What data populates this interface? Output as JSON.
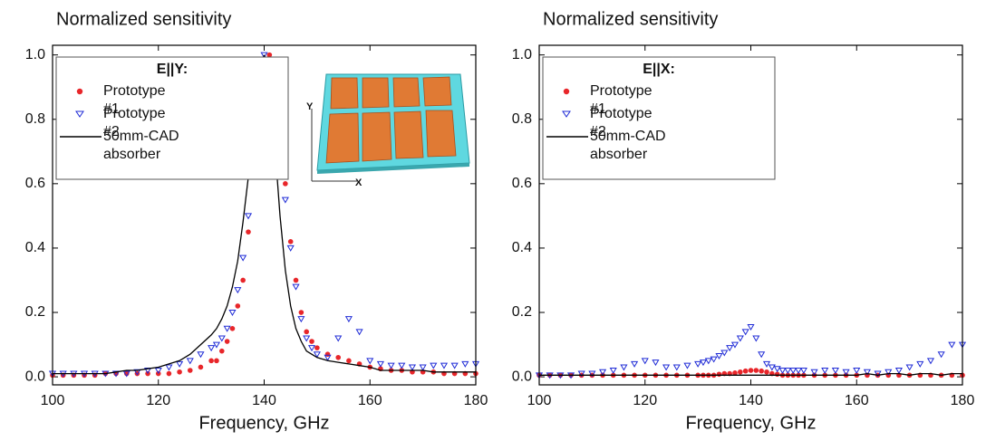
{
  "chart_data": [
    {
      "type": "line",
      "title": "Normalized sensitivity",
      "x_label": "Frequency, GHz",
      "legend_title": "E||Y:",
      "annotations": [
        "Y",
        "X"
      ],
      "xlim": [
        100,
        180
      ],
      "ylim": [
        -0.025,
        1.03
      ],
      "xticks": [
        100,
        120,
        140,
        160,
        180
      ],
      "yticks": [
        {
          "value": 0,
          "label": "0.0"
        },
        0.2,
        0.4,
        0.6,
        0.8,
        {
          "value": 1,
          "label": "1.0"
        }
      ],
      "x": [
        100,
        102,
        104,
        106,
        108,
        110,
        112,
        114,
        116,
        118,
        120,
        122,
        124,
        126,
        128,
        130,
        131,
        132,
        133,
        134,
        135,
        136,
        137,
        138,
        139,
        140,
        141,
        142,
        143,
        144,
        145,
        146,
        147,
        148,
        149,
        150,
        152,
        154,
        156,
        158,
        160,
        162,
        164,
        166,
        168,
        170,
        172,
        174,
        176,
        178,
        180
      ],
      "series": [
        {
          "name": "Prototype #1",
          "color": "#e8262a",
          "marker": "circle",
          "values": [
            0.005,
            0.005,
            0.005,
            0.005,
            0.005,
            0.01,
            0.01,
            0.01,
            0.01,
            0.01,
            0.01,
            0.01,
            0.015,
            0.02,
            0.03,
            0.05,
            0.05,
            0.08,
            0.11,
            0.15,
            0.22,
            0.3,
            0.45,
            0.65,
            0.83,
            0.95,
            1.0,
            0.93,
            0.8,
            0.6,
            0.42,
            0.3,
            0.2,
            0.14,
            0.11,
            0.09,
            0.07,
            0.06,
            0.05,
            0.04,
            0.03,
            0.025,
            0.02,
            0.02,
            0.015,
            0.015,
            0.015,
            0.01,
            0.01,
            0.01,
            0.01
          ]
        },
        {
          "name": "Prototype #2",
          "color": "#1f2bd6",
          "marker": "triangle-down",
          "values": [
            0.01,
            0.01,
            0.01,
            0.01,
            0.01,
            0.01,
            0.01,
            0.01,
            0.015,
            0.02,
            0.02,
            0.03,
            0.04,
            0.05,
            0.07,
            0.09,
            0.1,
            0.12,
            0.15,
            0.2,
            0.27,
            0.37,
            0.5,
            0.7,
            0.9,
            1.0,
            0.97,
            0.85,
            0.7,
            0.55,
            0.4,
            0.28,
            0.18,
            0.12,
            0.09,
            0.07,
            0.06,
            0.12,
            0.18,
            0.14,
            0.05,
            0.04,
            0.035,
            0.035,
            0.03,
            0.03,
            0.035,
            0.035,
            0.035,
            0.04,
            0.04
          ]
        },
        {
          "name": "50mm-CAD absorber",
          "color": "#000000",
          "marker": "none",
          "values": [
            0.01,
            0.01,
            0.01,
            0.01,
            0.01,
            0.01,
            0.015,
            0.02,
            0.02,
            0.025,
            0.03,
            0.04,
            0.05,
            0.07,
            0.1,
            0.13,
            0.15,
            0.18,
            0.22,
            0.28,
            0.36,
            0.48,
            0.62,
            0.78,
            0.92,
            1.0,
            0.9,
            0.72,
            0.5,
            0.33,
            0.22,
            0.15,
            0.11,
            0.08,
            0.07,
            0.06,
            0.05,
            0.045,
            0.04,
            0.035,
            0.03,
            0.02,
            0.02,
            0.02,
            0.02,
            0.02,
            0.015,
            0.015,
            0.015,
            0.015,
            0.015
          ]
        }
      ]
    },
    {
      "type": "line",
      "title": "Normalized sensitivity",
      "x_label": "Frequency, GHz",
      "legend_title": "E||X:",
      "xlim": [
        100,
        180
      ],
      "ylim": [
        -0.025,
        1.03
      ],
      "xticks": [
        100,
        120,
        140,
        160,
        180
      ],
      "yticks": [
        {
          "value": 0,
          "label": "0.0"
        },
        0.2,
        0.4,
        0.6,
        0.8,
        {
          "value": 1,
          "label": "1.0"
        }
      ],
      "x": [
        100,
        102,
        104,
        106,
        108,
        110,
        112,
        114,
        116,
        118,
        120,
        122,
        124,
        126,
        128,
        130,
        131,
        132,
        133,
        134,
        135,
        136,
        137,
        138,
        139,
        140,
        141,
        142,
        143,
        144,
        145,
        146,
        147,
        148,
        149,
        150,
        152,
        154,
        156,
        158,
        160,
        162,
        164,
        166,
        168,
        170,
        172,
        174,
        176,
        178,
        180
      ],
      "series": [
        {
          "name": "Prototype #1",
          "color": "#e8262a",
          "marker": "circle",
          "values": [
            0.005,
            0.005,
            0.005,
            0.005,
            0.005,
            0.005,
            0.005,
            0.005,
            0.005,
            0.005,
            0.005,
            0.005,
            0.005,
            0.005,
            0.005,
            0.005,
            0.005,
            0.005,
            0.005,
            0.008,
            0.01,
            0.01,
            0.012,
            0.015,
            0.018,
            0.02,
            0.02,
            0.018,
            0.015,
            0.01,
            0.008,
            0.005,
            0.005,
            0.005,
            0.005,
            0.005,
            0.005,
            0.005,
            0.005,
            0.005,
            0.005,
            0.005,
            0.005,
            0.005,
            0.005,
            0.005,
            0.005,
            0.005,
            0.005,
            0.005,
            0.005
          ]
        },
        {
          "name": "Prototype #2",
          "color": "#1f2bd6",
          "marker": "triangle-down",
          "values": [
            0.005,
            0.005,
            0.005,
            0.005,
            0.01,
            0.01,
            0.015,
            0.02,
            0.03,
            0.04,
            0.05,
            0.045,
            0.03,
            0.03,
            0.035,
            0.04,
            0.045,
            0.05,
            0.055,
            0.065,
            0.075,
            0.09,
            0.1,
            0.12,
            0.14,
            0.155,
            0.12,
            0.07,
            0.04,
            0.03,
            0.025,
            0.02,
            0.02,
            0.02,
            0.02,
            0.02,
            0.015,
            0.02,
            0.02,
            0.015,
            0.02,
            0.015,
            0.01,
            0.015,
            0.02,
            0.03,
            0.04,
            0.05,
            0.07,
            0.1,
            0.1
          ]
        },
        {
          "name": "50mm-CAD absorber",
          "color": "#000000",
          "marker": "none",
          "values": [
            0.005,
            0.005,
            0.005,
            0.005,
            0.005,
            0.005,
            0.005,
            0.005,
            0.005,
            0.005,
            0.005,
            0.005,
            0.005,
            0.005,
            0.005,
            0.005,
            0.005,
            0.005,
            0.005,
            0.005,
            0.005,
            0.005,
            0.005,
            0.005,
            0.005,
            0.005,
            0.005,
            0.005,
            0.005,
            0.005,
            0.005,
            0.005,
            0.005,
            0.005,
            0.005,
            0.005,
            0.005,
            0.005,
            0.005,
            0.005,
            0.005,
            0.01,
            0.005,
            0.01,
            0.01,
            0.005,
            0.01,
            0.01,
            0.005,
            0.01,
            0.01
          ]
        }
      ]
    }
  ]
}
